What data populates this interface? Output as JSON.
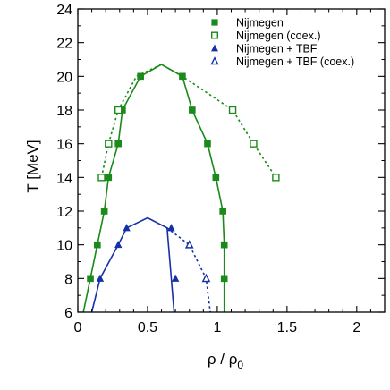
{
  "chart_data": {
    "type": "line",
    "xlabel": "ρ / ρ₀",
    "ylabel": "T [MeV]",
    "xlim": [
      0,
      2.2
    ],
    "ylim": [
      6,
      24
    ],
    "xticks": [
      0,
      0.5,
      1,
      1.5,
      2
    ],
    "xtick_labels": [
      "0",
      "0.5",
      "1",
      "1.5",
      "2"
    ],
    "yticks": [
      6,
      8,
      10,
      12,
      14,
      16,
      18,
      20,
      22,
      24
    ],
    "ytick_labels": [
      "6",
      "8",
      "10",
      "12",
      "14",
      "16",
      "18",
      "20",
      "22",
      "24"
    ],
    "grid": false,
    "legend_position": "top-right",
    "colors": {
      "green": "#1a8a1a",
      "blue": "#1530a8"
    },
    "series": [
      {
        "name": "Nijmegen",
        "color": "green",
        "marker": "square-filled",
        "points": [
          [
            0.09,
            8
          ],
          [
            0.14,
            10
          ],
          [
            0.19,
            12
          ],
          [
            0.22,
            14
          ],
          [
            0.29,
            16
          ],
          [
            0.32,
            18
          ],
          [
            0.45,
            20
          ],
          [
            0.75,
            20
          ],
          [
            0.82,
            18
          ],
          [
            0.93,
            16
          ],
          [
            0.99,
            14
          ],
          [
            1.04,
            12
          ],
          [
            1.05,
            10
          ],
          [
            1.05,
            8
          ]
        ]
      },
      {
        "name": "Nijmegen (coex.)",
        "color": "green",
        "marker": "square-open",
        "points": [
          [
            0.17,
            14
          ],
          [
            0.22,
            16
          ],
          [
            0.29,
            18
          ],
          [
            1.11,
            18
          ],
          [
            1.26,
            16
          ],
          [
            1.42,
            14
          ]
        ]
      },
      {
        "name": "Nijmegen + TBF",
        "color": "blue",
        "marker": "triangle-filled",
        "points": [
          [
            0.16,
            8
          ],
          [
            0.29,
            10
          ],
          [
            0.35,
            11
          ],
          [
            0.67,
            11
          ],
          [
            0.7,
            8
          ]
        ]
      },
      {
        "name": "Nijmegen + TBF (coex.)",
        "color": "blue",
        "marker": "triangle-open",
        "points": [
          [
            0.8,
            10
          ],
          [
            0.92,
            8
          ]
        ]
      }
    ],
    "curves": [
      {
        "series": "Nijmegen",
        "color": "green",
        "dash": false,
        "points": [
          [
            0.04,
            6
          ],
          [
            0.09,
            8
          ],
          [
            0.14,
            10
          ],
          [
            0.19,
            12
          ],
          [
            0.22,
            14
          ],
          [
            0.29,
            16
          ],
          [
            0.32,
            18
          ],
          [
            0.45,
            20
          ],
          [
            0.6,
            20.7
          ],
          [
            0.75,
            20
          ],
          [
            0.82,
            18
          ],
          [
            0.93,
            16
          ],
          [
            0.99,
            14
          ],
          [
            1.04,
            12
          ],
          [
            1.05,
            10
          ],
          [
            1.05,
            8
          ],
          [
            1.05,
            6
          ]
        ]
      },
      {
        "series": "Nijmegen (coex.)",
        "color": "green",
        "dash": true,
        "points": [
          [
            0.17,
            14
          ],
          [
            0.22,
            16
          ],
          [
            0.29,
            18
          ],
          [
            0.42,
            20
          ],
          [
            0.6,
            20.7
          ],
          [
            0.75,
            20
          ],
          [
            1.11,
            18
          ],
          [
            1.26,
            16
          ],
          [
            1.42,
            14
          ]
        ]
      },
      {
        "series": "Nijmegen + TBF",
        "color": "blue",
        "dash": false,
        "points": [
          [
            0.1,
            6
          ],
          [
            0.16,
            8
          ],
          [
            0.29,
            10
          ],
          [
            0.35,
            11
          ],
          [
            0.5,
            11.6
          ],
          [
            0.64,
            11
          ],
          [
            0.67,
            8
          ],
          [
            0.69,
            6
          ]
        ]
      },
      {
        "series": "Nijmegen + TBF (coex.)",
        "color": "blue",
        "dash": true,
        "points": [
          [
            0.64,
            11
          ],
          [
            0.8,
            10
          ],
          [
            0.92,
            8
          ],
          [
            0.95,
            6
          ]
        ]
      }
    ]
  }
}
